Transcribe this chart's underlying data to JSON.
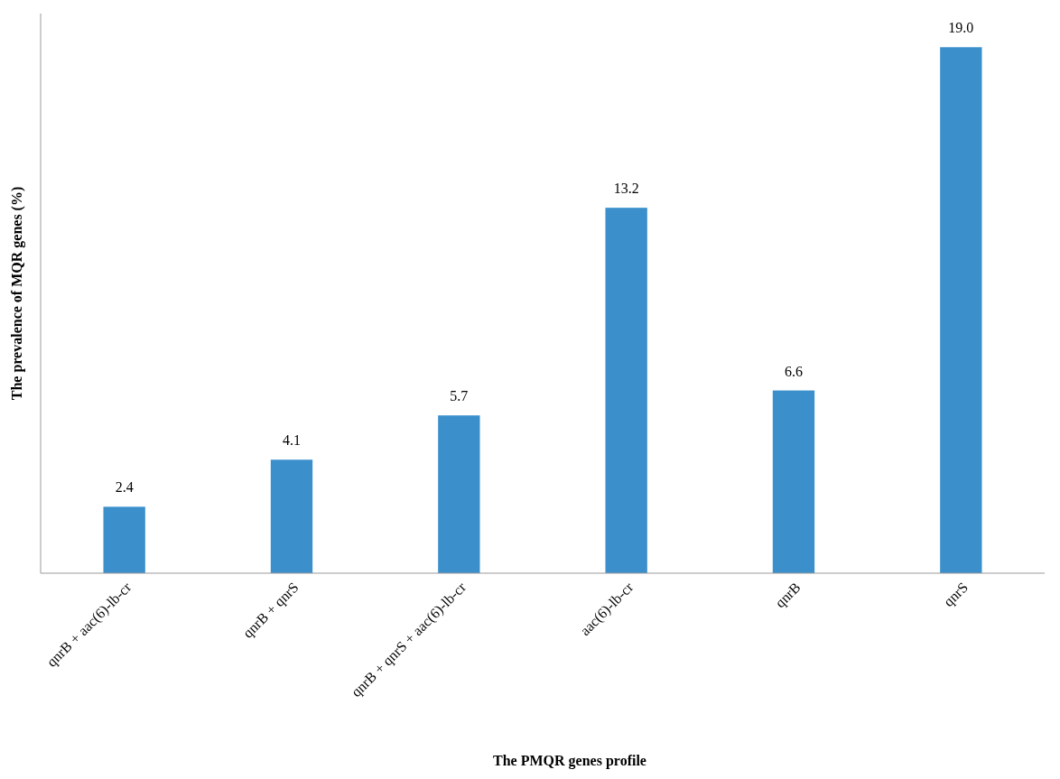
{
  "chart_data": {
    "type": "bar",
    "xlabel": "The PMQR genes profile",
    "ylabel": "The prevalence of MQR genes (%)",
    "categories": [
      "qnrB + aac(6)-lb-cr",
      "qnrB + qnrS",
      "qnrB + qnrS + aac(6)-lb-cr",
      "aac(6)-lb-cr",
      "qnrB",
      "qnrS"
    ],
    "values": [
      2.4,
      4.1,
      5.7,
      13.2,
      6.6,
      19.0
    ],
    "value_labels": [
      "2.4",
      "4.1",
      "5.7",
      "13.2",
      "6.6",
      "19.0"
    ],
    "color": "#3b90cc"
  }
}
